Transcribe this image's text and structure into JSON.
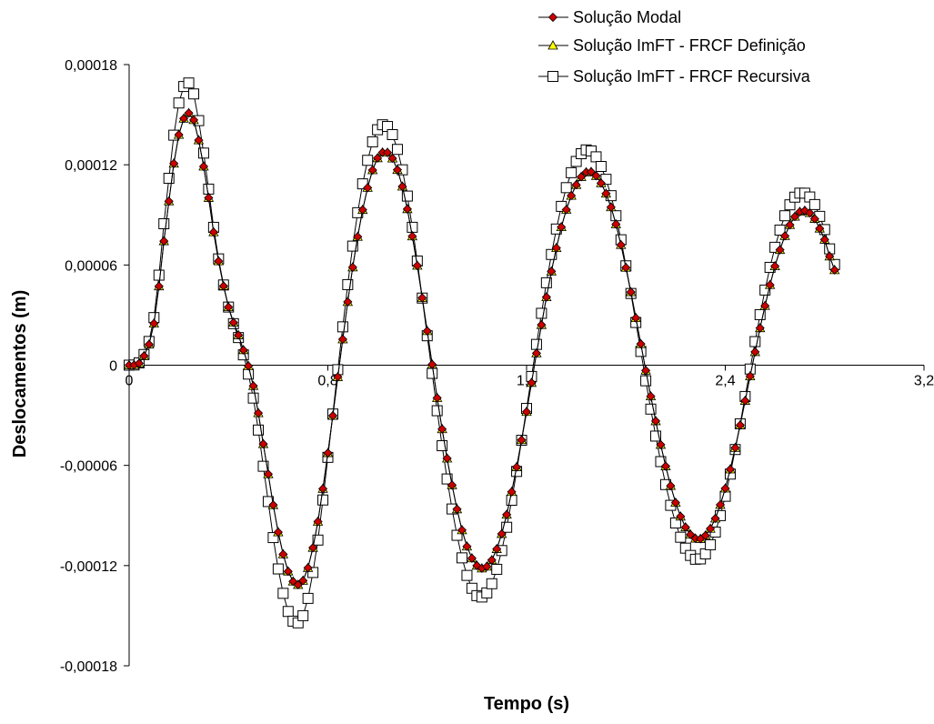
{
  "chart_data": {
    "type": "line",
    "title": "",
    "xlabel": "Tempo (s)",
    "ylabel": "Deslocamentos (m)",
    "xlim": [
      0,
      3.2
    ],
    "ylim": [
      -0.00018,
      0.00018
    ],
    "xticks": [
      0,
      0.8,
      1.6,
      2.4,
      3.2
    ],
    "xtick_labels": [
      "0",
      "0,8",
      "1,6",
      "2,4",
      "3,2"
    ],
    "yticks": [
      0.00018,
      0.00012,
      6e-05,
      0,
      -6e-05,
      -0.00012,
      -0.00018
    ],
    "ytick_labels": [
      "0,00018",
      "0,00012",
      "0,00006",
      "0",
      "-0,00006",
      "-0,00012",
      "-0,00018"
    ],
    "grid": false,
    "legend_position": "top-right",
    "sample_step": 0.02,
    "series": [
      {
        "name": "Solução Modal",
        "marker": "diamond",
        "color": "#cc0000",
        "x": [
          0,
          0.05,
          0.1,
          0.15,
          0.2,
          0.25,
          0.3,
          0.35,
          0.4,
          0.45,
          0.5,
          0.55,
          0.6,
          0.65,
          0.7,
          0.75,
          0.8,
          0.85,
          0.9,
          0.95,
          1.0,
          1.05,
          1.1,
          1.15,
          1.2,
          1.25,
          1.3,
          1.35,
          1.4,
          1.45,
          1.5,
          1.55,
          1.6,
          1.65,
          1.7,
          1.75,
          1.8,
          1.85,
          1.9,
          1.95,
          2.0,
          2.05,
          2.1,
          2.15,
          2.2,
          2.25,
          2.3,
          2.35,
          2.4,
          2.45,
          2.5,
          2.55,
          2.6,
          2.65,
          2.7,
          2.75,
          2.8,
          2.84
        ],
        "values": [
          0,
          3e-06,
          2.5e-05,
          8.66e-05,
          0.000138,
          0.00015,
          0.000119,
          7.05e-05,
          3.48e-05,
          1.37e-05,
          -1.24e-05,
          -5.62e-05,
          -0.0001,
          -0.000127,
          -0.000129,
          -0.000102,
          -5.26e-05,
          4.3e-06,
          5.86e-05,
          0.0001,
          0.000124,
          0.000126,
          0.000107,
          6.86e-05,
          2.05e-05,
          -2.91e-05,
          -7.18e-05,
          -0.000104,
          -0.00012,
          -0.000119,
          -0.000101,
          -6.86e-05,
          -2.79e-05,
          1.57e-05,
          5.62e-05,
          8.82e-05,
          0.000108,
          0.000116,
          0.000109,
          8.98e-05,
          5.84e-05,
          2.05e-05,
          -1.86e-05,
          -5.42e-05,
          -8.23e-05,
          -9.95e-05,
          -0.000104,
          -9.51e-05,
          -7.38e-05,
          -4.28e-05,
          -6.6e-06,
          2.9e-05,
          5.93e-05,
          8.09e-05,
          9.19e-05,
          8.97e-05,
          7.52e-05,
          5.7e-05
        ]
      },
      {
        "name": "Solução ImFT - FRCF Definição",
        "marker": "triangle",
        "color": "#ffff00",
        "x": [
          0,
          0.05,
          0.1,
          0.15,
          0.2,
          0.25,
          0.3,
          0.35,
          0.4,
          0.45,
          0.5,
          0.55,
          0.6,
          0.65,
          0.7,
          0.75,
          0.8,
          0.85,
          0.9,
          0.95,
          1.0,
          1.05,
          1.1,
          1.15,
          1.2,
          1.25,
          1.3,
          1.35,
          1.4,
          1.45,
          1.5,
          1.55,
          1.6,
          1.65,
          1.7,
          1.75,
          1.8,
          1.85,
          1.9,
          1.95,
          2.0,
          2.05,
          2.1,
          2.15,
          2.2,
          2.25,
          2.3,
          2.35,
          2.4,
          2.45,
          2.5,
          2.55,
          2.6,
          2.65,
          2.7,
          2.75,
          2.8,
          2.84
        ],
        "values": [
          0,
          3e-06,
          2.5e-05,
          8.66e-05,
          0.000138,
          0.00015,
          0.000119,
          7.05e-05,
          3.48e-05,
          1.37e-05,
          -1.24e-05,
          -5.62e-05,
          -0.0001,
          -0.000127,
          -0.000129,
          -0.000102,
          -5.26e-05,
          4.3e-06,
          5.86e-05,
          0.0001,
          0.000124,
          0.000126,
          0.000107,
          6.86e-05,
          2.05e-05,
          -2.91e-05,
          -7.18e-05,
          -0.000104,
          -0.00012,
          -0.000119,
          -0.000101,
          -6.86e-05,
          -2.79e-05,
          1.57e-05,
          5.62e-05,
          8.82e-05,
          0.000108,
          0.000116,
          0.000109,
          8.98e-05,
          5.84e-05,
          2.05e-05,
          -1.86e-05,
          -5.42e-05,
          -8.23e-05,
          -9.95e-05,
          -0.000104,
          -9.51e-05,
          -7.38e-05,
          -4.28e-05,
          -6.6e-06,
          2.9e-05,
          5.93e-05,
          8.09e-05,
          9.19e-05,
          8.97e-05,
          7.52e-05,
          5.7e-05
        ]
      },
      {
        "name": "Solução ImFT - FRCF Recursiva",
        "marker": "square",
        "color": "#ffffff",
        "x": [
          0,
          0.05,
          0.1,
          0.15,
          0.2,
          0.25,
          0.3,
          0.35,
          0.4,
          0.45,
          0.5,
          0.55,
          0.6,
          0.65,
          0.7,
          0.75,
          0.8,
          0.85,
          0.9,
          0.95,
          1.0,
          1.05,
          1.1,
          1.15,
          1.2,
          1.25,
          1.3,
          1.35,
          1.4,
          1.45,
          1.5,
          1.55,
          1.6,
          1.65,
          1.7,
          1.75,
          1.8,
          1.85,
          1.9,
          1.95,
          2.0,
          2.05,
          2.1,
          2.15,
          2.2,
          2.25,
          2.3,
          2.35,
          2.4,
          2.45,
          2.5,
          2.55,
          2.6,
          2.65,
          2.7,
          2.75,
          2.8,
          2.84
        ],
        "values": [
          0,
          3.5e-06,
          2.85e-05,
          9.87e-05,
          0.000157,
          0.000167,
          0.000127,
          7.25e-05,
          3.48e-05,
          1.16e-05,
          -1.97e-05,
          -7.11e-05,
          -0.000122,
          -0.000151,
          -0.00015,
          -0.000115,
          -5.52e-05,
          1.02e-05,
          7.13e-05,
          0.000116,
          0.000141,
          0.000141,
          0.000117,
          7.27e-05,
          1.76e-05,
          -3.79e-05,
          -8.61e-05,
          -0.000121,
          -0.000138,
          -0.000134,
          -0.000111,
          -7.24e-05,
          -2.59e-05,
          2.18e-05,
          6.63e-05,
          0.000101,
          0.000122,
          0.000129,
          0.000119,
          9.58e-05,
          5.95e-05,
          1.69e-05,
          -2.63e-05,
          -6.48e-05,
          -9.45e-05,
          -0.000112,
          -0.000116,
          -0.000104,
          -7.85e-05,
          -4.29e-05,
          -2.3e-06,
          3.78e-05,
          7.06e-05,
          9.3e-05,
          0.000103,
          9.88e-05,
          8.12e-05,
          6.03e-05
        ]
      }
    ]
  }
}
